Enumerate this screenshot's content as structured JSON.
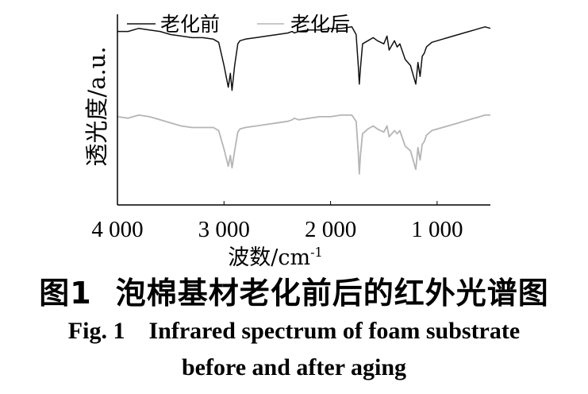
{
  "chart_data": {
    "type": "line",
    "x": [
      4000,
      3900,
      3800,
      3700,
      3600,
      3500,
      3400,
      3300,
      3200,
      3100,
      3050,
      3000,
      2960,
      2940,
      2925,
      2900,
      2870,
      2850,
      2800,
      2700,
      2600,
      2500,
      2400,
      2360,
      2340,
      2300,
      2200,
      2100,
      2000,
      1900,
      1800,
      1760,
      1740,
      1730,
      1720,
      1700,
      1650,
      1600,
      1560,
      1500,
      1470,
      1450,
      1400,
      1375,
      1350,
      1300,
      1250,
      1200,
      1180,
      1160,
      1140,
      1120,
      1100,
      1050,
      1000,
      950,
      900,
      850,
      800,
      750,
      700,
      650,
      600,
      550,
      500
    ],
    "series": [
      {
        "name": "老化前",
        "color": "#111111",
        "values": [
          92,
          92,
          94,
          93,
          92,
          90,
          89,
          88,
          88,
          87,
          85,
          70,
          56,
          65,
          54,
          70,
          84,
          86,
          87,
          88,
          89,
          90,
          91,
          92,
          91,
          92,
          93,
          93,
          94,
          94,
          95,
          90,
          70,
          58,
          68,
          84,
          86,
          88,
          86,
          84,
          89,
          80,
          86,
          82,
          84,
          74,
          70,
          58,
          72,
          63,
          76,
          78,
          82,
          85,
          86,
          87,
          88,
          89,
          90,
          91,
          92,
          93,
          94,
          95,
          94
        ]
      },
      {
        "name": "老化后",
        "color": "#b5b5b5",
        "values": [
          37,
          36,
          38,
          37,
          35,
          33,
          31,
          30,
          30,
          30,
          28,
          16,
          5,
          12,
          4,
          15,
          27,
          29,
          30,
          31,
          32,
          33,
          34,
          35,
          36,
          35,
          36,
          37,
          37,
          38,
          38,
          34,
          14,
          0,
          12,
          26,
          29,
          31,
          29,
          27,
          31,
          24,
          28,
          26,
          28,
          18,
          15,
          3,
          17,
          9,
          19,
          21,
          25,
          28,
          29,
          30,
          31,
          32,
          33,
          34,
          35,
          36,
          37,
          38,
          38
        ]
      }
    ],
    "xlim": [
      4000,
      500
    ],
    "ylim": [
      -20,
      100
    ],
    "x_ticks": [
      "4 000",
      "3 000",
      "2 000",
      "1 000"
    ],
    "x_tick_values": [
      4000,
      3000,
      2000,
      1000
    ],
    "xlabel": "波数/cm",
    "xlabel_sup": "-1",
    "ylabel": "透光度/a.u.",
    "legend": "top",
    "grid": false
  },
  "caption": {
    "cn_fig": "图1",
    "cn_title": "泡棉基材老化前后的红外光谱图",
    "en_fig": "Fig. 1",
    "en_title_line1": "Infrared spectrum of foam substrate",
    "en_title_line2": "before and after aging"
  }
}
